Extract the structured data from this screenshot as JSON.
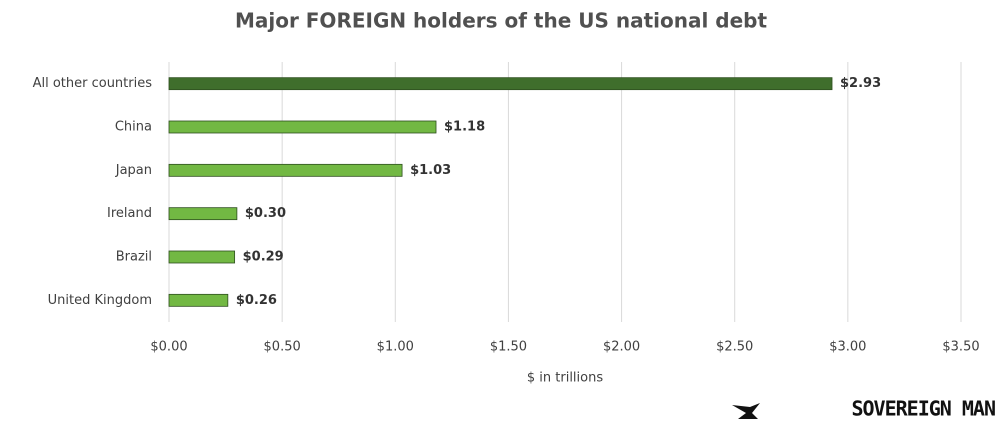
{
  "chart_data": {
    "type": "hbar",
    "title": "Major FOREIGN holders of the US national debt",
    "x_label": "$ in trillions",
    "categories": [
      "All other countries",
      "China",
      "Japan",
      "Ireland",
      "Brazil",
      "United Kingdom"
    ],
    "values": [
      2.93,
      1.18,
      1.03,
      0.3,
      0.29,
      0.26
    ],
    "value_labels": [
      "$2.93",
      "$1.18",
      "$1.03",
      "$0.30",
      "$0.29",
      "$0.26"
    ],
    "colors": [
      "#3f6e2c",
      "#72b843",
      "#72b843",
      "#72b843",
      "#72b843",
      "#72b843"
    ],
    "xlim": [
      0,
      3.5
    ],
    "xticks": [
      {
        "value": 0,
        "label": "$0.00"
      },
      {
        "value": 0.5,
        "label": "$0.50"
      },
      {
        "value": 1,
        "label": "$1.00"
      },
      {
        "value": 1.5,
        "label": "$1.50"
      },
      {
        "value": 2,
        "label": "$2.00"
      },
      {
        "value": 2.5,
        "label": "$2.50"
      },
      {
        "value": 3,
        "label": "$3.00"
      },
      {
        "value": 3.5,
        "label": "$3.50"
      }
    ],
    "grid": true,
    "watermark": "SOVEREIGN MAN"
  }
}
